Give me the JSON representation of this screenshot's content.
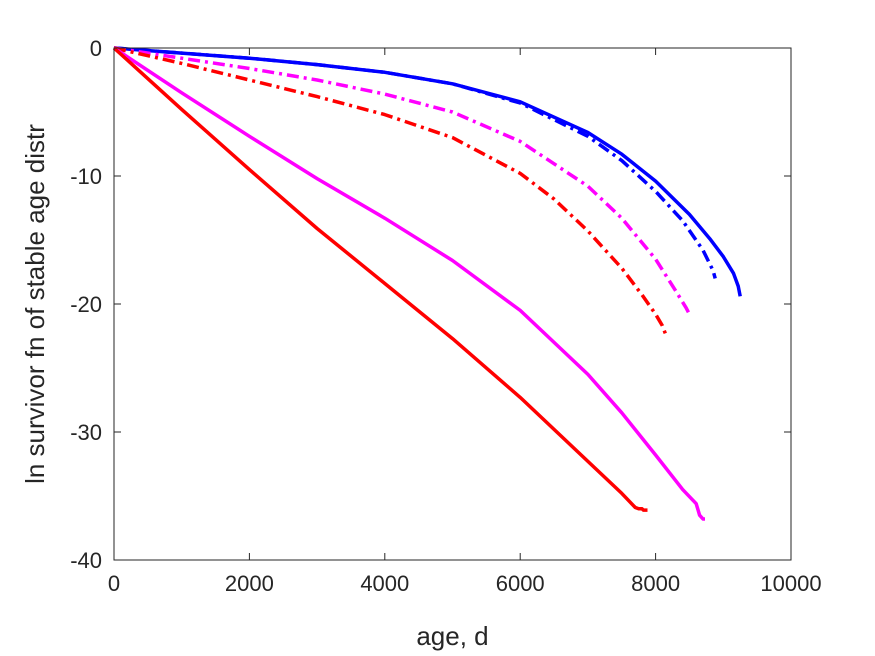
{
  "chart_data": {
    "type": "line",
    "title": "",
    "xlabel": "age, d",
    "ylabel": "ln survivor fn of stable age distr",
    "xlim": [
      0,
      10000
    ],
    "ylim": [
      -40,
      0
    ],
    "xticks": [
      0,
      2000,
      4000,
      6000,
      8000,
      10000
    ],
    "yticks": [
      0,
      -10,
      -20,
      -30,
      -40
    ],
    "grid": false,
    "legend": "none",
    "series": [
      {
        "color": "#0000ff",
        "style": "solid",
        "x": [
          0,
          1000,
          2000,
          3000,
          4000,
          5000,
          6000,
          7000,
          7500,
          8000,
          8500,
          8800,
          9000,
          9150,
          9220,
          9250
        ],
        "y": [
          0,
          -0.4,
          -0.8,
          -1.3,
          -1.9,
          -2.8,
          -4.2,
          -6.6,
          -8.3,
          -10.4,
          -13.0,
          -14.9,
          -16.3,
          -17.6,
          -18.6,
          -19.4
        ]
      },
      {
        "color": "#0000ff",
        "style": "dashdot",
        "x": [
          0,
          1000,
          2000,
          3000,
          4000,
          5000,
          6000,
          7000,
          7500,
          8000,
          8400,
          8700,
          8850,
          8880
        ],
        "y": [
          0,
          -0.4,
          -0.8,
          -1.3,
          -1.9,
          -2.8,
          -4.3,
          -6.9,
          -8.8,
          -11.2,
          -13.5,
          -15.8,
          -17.4,
          -18.0
        ]
      },
      {
        "color": "#ff00ff",
        "style": "dashdot",
        "x": [
          0,
          1000,
          2000,
          3000,
          4000,
          5000,
          6000,
          7000,
          7500,
          8000,
          8300,
          8450,
          8500
        ],
        "y": [
          0,
          -0.8,
          -1.6,
          -2.5,
          -3.6,
          -5.0,
          -7.3,
          -10.8,
          -13.3,
          -16.5,
          -19.0,
          -20.3,
          -20.8
        ]
      },
      {
        "color": "#ff0000",
        "style": "dashdot",
        "x": [
          0,
          1000,
          2000,
          3000,
          4000,
          5000,
          6000,
          6500,
          7000,
          7500,
          7800,
          8000,
          8100,
          8150
        ],
        "y": [
          0,
          -1.2,
          -2.5,
          -3.8,
          -5.2,
          -7.0,
          -9.8,
          -11.8,
          -14.3,
          -17.2,
          -19.3,
          -20.8,
          -21.7,
          -22.4
        ]
      },
      {
        "color": "#ff00ff",
        "style": "solid",
        "x": [
          0,
          1000,
          2000,
          3000,
          4000,
          5000,
          6000,
          7000,
          7500,
          8000,
          8400,
          8600,
          8650,
          8700,
          8730
        ],
        "y": [
          0,
          -3.5,
          -6.9,
          -10.2,
          -13.3,
          -16.6,
          -20.5,
          -25.5,
          -28.5,
          -31.8,
          -34.5,
          -35.6,
          -36.5,
          -36.8,
          -36.8
        ]
      },
      {
        "color": "#ff0000",
        "style": "solid",
        "x": [
          0,
          1000,
          2000,
          3000,
          4000,
          5000,
          6000,
          7000,
          7500,
          7700,
          7750,
          7800,
          7820,
          7880
        ],
        "y": [
          0,
          -4.8,
          -9.5,
          -14.1,
          -18.4,
          -22.7,
          -27.3,
          -32.3,
          -34.8,
          -35.9,
          -36.0,
          -36.0,
          -36.1,
          -36.1
        ]
      }
    ]
  }
}
